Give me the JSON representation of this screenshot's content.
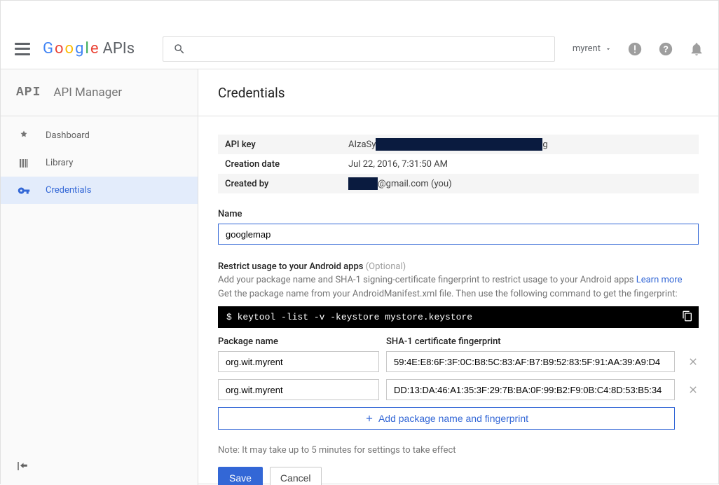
{
  "header": {
    "logo_apis": "APIs",
    "search_placeholder": "",
    "project_name": "myrent"
  },
  "sidebar": {
    "api_badge": "API",
    "title": "API Manager",
    "items": [
      {
        "label": "Dashboard"
      },
      {
        "label": "Library"
      },
      {
        "label": "Credentials"
      }
    ]
  },
  "main": {
    "title": "Credentials",
    "info": {
      "api_key_label": "API key",
      "api_key_prefix": "AIzaSy",
      "api_key_suffix": "g",
      "creation_label": "Creation date",
      "creation_value": "Jul 22, 2016, 7:31:50 AM",
      "created_by_label": "Created by",
      "created_by_suffix": "@gmail.com (you)"
    },
    "name_label": "Name",
    "name_value": "googlemap",
    "restrict": {
      "title": "Restrict usage to your Android apps",
      "optional": "(Optional)",
      "line1": "Add your package name and SHA-1 signing-certificate fingerprint to restrict usage to your Android apps ",
      "learn_more": "Learn more",
      "line2": "Get the package name from your AndroidManifest.xml file. Then use the following command to get the fingerprint:",
      "terminal": "$ keytool -list -v -keystore mystore.keystore",
      "col_pkg": "Package name",
      "col_sha": "SHA-1 certificate fingerprint",
      "rows": [
        {
          "pkg": "org.wit.myrent",
          "sha": "59:4E:E8:6F:3F:0C:B8:5C:83:AF:B7:B9:52:83:5F:91:AA:39:A9:D4"
        },
        {
          "pkg": "org.wit.myrent",
          "sha": "DD:13:DA:46:A1:35:3F:29:7B:BA:0F:99:B2:F9:0B:C4:8D:53:B5:34"
        }
      ],
      "add_label": "Add package name and fingerprint"
    },
    "note": "Note: It may take up to 5 minutes for settings to take effect",
    "save": "Save",
    "cancel": "Cancel"
  },
  "colors": {
    "accent": "#3367d6",
    "redact": "#0a1b3f",
    "grey_bg": "#f5f5f5"
  }
}
